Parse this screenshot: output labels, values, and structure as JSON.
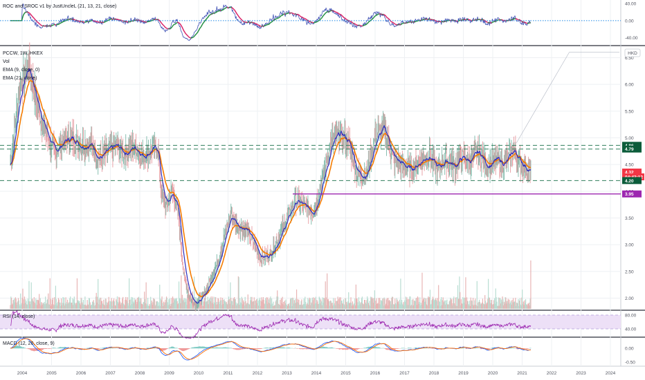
{
  "chart_data": {
    "type": "line",
    "main": {
      "header_lines": [
        "PCCW, 1W, HKEX",
        "Vol",
        "EMA (9, close, 0)",
        "EMA (21, close)"
      ],
      "currency": "HKD",
      "y_ticks": [
        "6.50",
        "6.00",
        "5.50",
        "5.00",
        "4.50",
        "4.00",
        "3.50",
        "3.00",
        "2.50",
        "2.00"
      ],
      "ylim": [
        1.8,
        6.7
      ],
      "x_ticks": [
        "2004",
        "2005",
        "2006",
        "2007",
        "2008",
        "2009",
        "2010",
        "2011",
        "2012",
        "2013",
        "2014",
        "2015",
        "2016",
        "2017",
        "2018",
        "2019",
        "2020",
        "2021",
        "2022",
        "2023",
        "2024"
      ],
      "price_path": [
        [
          2003.6,
          4.5
        ],
        [
          2003.9,
          5.9
        ],
        [
          2004.2,
          6.4
        ],
        [
          2004.5,
          5.6
        ],
        [
          2004.8,
          5.1
        ],
        [
          2005.1,
          4.7
        ],
        [
          2005.4,
          4.95
        ],
        [
          2005.7,
          5.0
        ],
        [
          2006.0,
          4.85
        ],
        [
          2006.3,
          4.9
        ],
        [
          2006.6,
          4.6
        ],
        [
          2006.9,
          4.75
        ],
        [
          2007.2,
          4.85
        ],
        [
          2007.5,
          4.7
        ],
        [
          2007.8,
          4.85
        ],
        [
          2008.1,
          4.65
        ],
        [
          2008.4,
          4.8
        ],
        [
          2008.6,
          4.8
        ],
        [
          2008.75,
          3.9
        ],
        [
          2008.9,
          3.7
        ],
        [
          2009.1,
          4.0
        ],
        [
          2009.3,
          3.6
        ],
        [
          2009.5,
          2.4
        ],
        [
          2009.7,
          2.0
        ],
        [
          2009.9,
          1.9
        ],
        [
          2010.1,
          2.0
        ],
        [
          2010.3,
          2.2
        ],
        [
          2010.6,
          2.6
        ],
        [
          2010.9,
          3.2
        ],
        [
          2011.1,
          3.6
        ],
        [
          2011.3,
          3.35
        ],
        [
          2011.6,
          3.3
        ],
        [
          2011.9,
          3.0
        ],
        [
          2012.1,
          2.75
        ],
        [
          2012.4,
          2.8
        ],
        [
          2012.7,
          3.1
        ],
        [
          2013.0,
          3.5
        ],
        [
          2013.3,
          3.85
        ],
        [
          2013.6,
          3.7
        ],
        [
          2013.9,
          3.6
        ],
        [
          2014.2,
          4.2
        ],
        [
          2014.5,
          4.9
        ],
        [
          2014.8,
          5.1
        ],
        [
          2015.1,
          4.9
        ],
        [
          2015.4,
          4.3
        ],
        [
          2015.7,
          4.3
        ],
        [
          2016.0,
          5.0
        ],
        [
          2016.3,
          5.2
        ],
        [
          2016.6,
          4.6
        ],
        [
          2016.9,
          4.5
        ],
        [
          2017.2,
          4.4
        ],
        [
          2017.5,
          4.55
        ],
        [
          2017.8,
          4.7
        ],
        [
          2018.1,
          4.4
        ],
        [
          2018.4,
          4.6
        ],
        [
          2018.7,
          4.45
        ],
        [
          2018.9,
          4.65
        ],
        [
          2019.2,
          4.55
        ],
        [
          2019.5,
          4.75
        ],
        [
          2019.8,
          4.45
        ],
        [
          2020.1,
          4.6
        ],
        [
          2020.4,
          4.5
        ],
        [
          2020.7,
          4.8
        ],
        [
          2020.9,
          4.55
        ],
        [
          2021.1,
          4.45
        ],
        [
          2021.3,
          4.32
        ]
      ],
      "horizontal_levels": [
        4.86,
        4.79,
        4.2
      ],
      "support_line": 3.95,
      "price_tags": [
        {
          "text": "4.86",
          "color": "#0b5c3a"
        },
        {
          "text": "4.79",
          "color": "#0b5c3a"
        },
        {
          "text": "4.32",
          "color": "#f23645"
        },
        {
          "text": "04:43:12",
          "color": "#f23645"
        },
        {
          "text": "4.20",
          "color": "#0b5c3a"
        },
        {
          "text": "3.95",
          "color": "#9c27b0"
        }
      ]
    },
    "roc": {
      "header": "ROC and SROC v1 by JustUncleL (21, 13, 21, close)",
      "y_ticks": [
        "40.00",
        "0.00",
        "-40.00"
      ],
      "ylim": [
        -55,
        45
      ]
    },
    "rsi": {
      "header": "RSI (14, close)",
      "y_ticks": [
        "80.00",
        "40.00"
      ],
      "ylim": [
        20,
        90
      ]
    },
    "macd": {
      "header": "MACD (12, 26, close, 9)",
      "y_ticks": [
        "0.00",
        "-0.50"
      ],
      "ylim": [
        -0.6,
        0.35
      ]
    },
    "colors": {
      "ema_fast": "#2d2dbf",
      "ema_slow": "#f57c00",
      "roc_up": "#1b8a3b",
      "roc_down": "#d81b60",
      "roc_line": "#3f51b5",
      "rsi_line": "#9c27b0",
      "rsi_band": "#ede0f7",
      "volume": "#e8b4b4",
      "dashed": "#2e7d5b",
      "support": "#9c27b0",
      "candle_up": "#7cb8a8",
      "candle_down": "#e79aa0"
    }
  }
}
